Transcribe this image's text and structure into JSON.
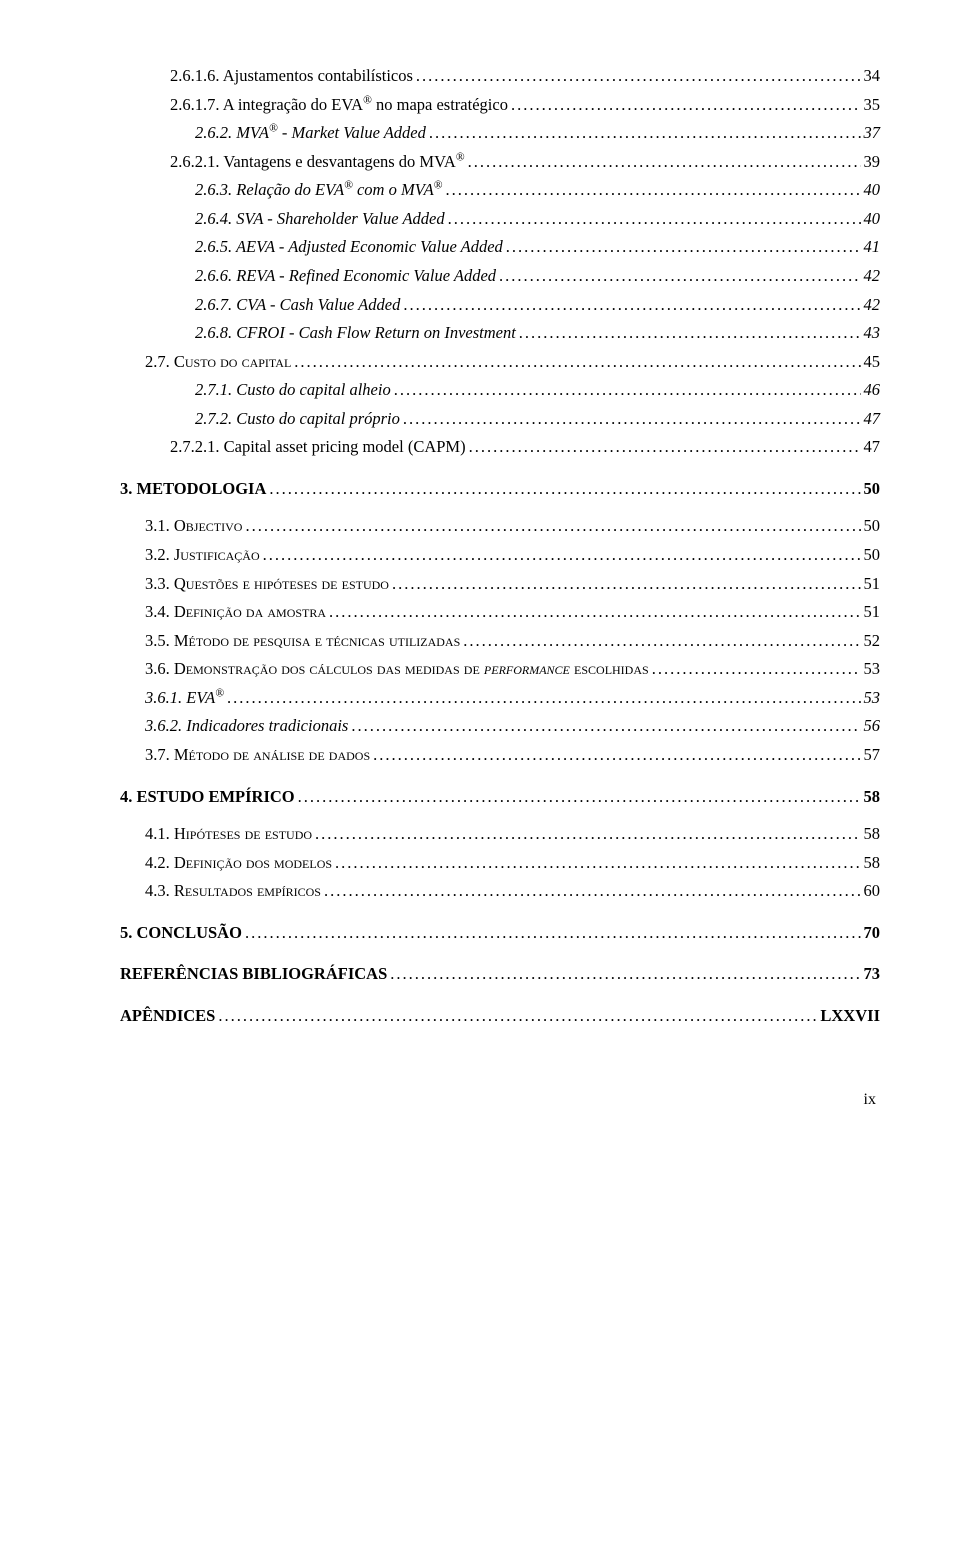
{
  "colors": {
    "text": "#000000",
    "background": "#ffffff"
  },
  "typography": {
    "family": "Times New Roman",
    "base_size_pt": 12
  },
  "page_number": "ix",
  "entries": [
    {
      "level": "A1",
      "label": "2.6.1.6. Ajustamentos contabilísticos",
      "page": "34",
      "italic": false,
      "bold": false,
      "smallcaps": false,
      "sup": ""
    },
    {
      "level": "A1",
      "label": "2.6.1.7. A integração do EVA",
      "sup": "®",
      "label_after": " no mapa estratégico",
      "page": "35",
      "italic": false,
      "bold": false,
      "smallcaps": false
    },
    {
      "level": "A2",
      "label": "2.6.2. MVA",
      "sup": "®",
      "label_after": " - Market Value Added",
      "page": "37",
      "italic": true,
      "bold": false,
      "smallcaps": false
    },
    {
      "level": "A1",
      "label": "2.6.2.1. Vantagens e desvantagens do MVA",
      "sup": "®",
      "label_after": "",
      "page": "39",
      "italic": false,
      "bold": false,
      "smallcaps": false
    },
    {
      "level": "A2",
      "label": "2.6.3. Relação do EVA",
      "sup": "®",
      "label_after": " com o MVA",
      "sup2": "®",
      "page": "40",
      "italic": true,
      "bold": false,
      "smallcaps": false
    },
    {
      "level": "A2",
      "label": "2.6.4. SVA - Shareholder Value Added",
      "page": "40",
      "italic": true,
      "bold": false,
      "smallcaps": false,
      "sup": ""
    },
    {
      "level": "A2",
      "label": "2.6.5. AEVA - Adjusted Economic Value Added",
      "page": "41",
      "italic": true,
      "bold": false,
      "smallcaps": false,
      "sup": ""
    },
    {
      "level": "A2",
      "label": "2.6.6. REVA - Refined Economic Value Added",
      "page": "42",
      "italic": true,
      "bold": false,
      "smallcaps": false,
      "sup": ""
    },
    {
      "level": "A2",
      "label": "2.6.7. CVA - Cash Value Added",
      "page": "42",
      "italic": true,
      "bold": false,
      "smallcaps": false,
      "sup": ""
    },
    {
      "level": "A2",
      "label": "2.6.8. CFROI - Cash Flow Return on Investment",
      "page": "43",
      "italic": true,
      "bold": false,
      "smallcaps": false,
      "sup": ""
    },
    {
      "level": "B1",
      "label": "2.7. Custo do capital",
      "page": "45",
      "italic": false,
      "bold": false,
      "smallcaps": true,
      "sup": ""
    },
    {
      "level": "A2",
      "label": "2.7.1. Custo do capital alheio",
      "page": "46",
      "italic": true,
      "bold": false,
      "smallcaps": false,
      "sup": ""
    },
    {
      "level": "A2",
      "label": "2.7.2. Custo do capital próprio",
      "page": "47",
      "italic": true,
      "bold": false,
      "smallcaps": false,
      "sup": ""
    },
    {
      "level": "A1",
      "label": "2.7.2.1. Capital asset pricing model (CAPM)",
      "page": "47",
      "italic": false,
      "bold": false,
      "smallcaps": false,
      "sup": ""
    },
    {
      "spacer": "md"
    },
    {
      "level": "C",
      "label": "3. METODOLOGIA",
      "page": "50",
      "italic": false,
      "bold": true,
      "smallcaps": false,
      "sup": ""
    },
    {
      "spacer": "sm"
    },
    {
      "level": "B1",
      "label": "3.1. Objectivo",
      "page": "50",
      "italic": false,
      "bold": false,
      "smallcaps": true,
      "sup": ""
    },
    {
      "level": "B1",
      "label": "3.2. Justificação",
      "page": "50",
      "italic": false,
      "bold": false,
      "smallcaps": true,
      "sup": ""
    },
    {
      "level": "B1",
      "label": "3.3. Questões e hipóteses de estudo",
      "page": "51",
      "italic": false,
      "bold": false,
      "smallcaps": true,
      "sup": ""
    },
    {
      "level": "B1",
      "label": "3.4. Definição da amostra",
      "page": "51",
      "italic": false,
      "bold": false,
      "smallcaps": true,
      "sup": ""
    },
    {
      "level": "B1",
      "label": "3.5. Método de pesquisa e técnicas utilizadas",
      "page": "52",
      "italic": false,
      "bold": false,
      "smallcaps": true,
      "sup": ""
    },
    {
      "level": "B1",
      "label_html": "3.6. Demonstração dos cálculos das medidas de <span class=\"italic\">performance</span> escolhidas",
      "page": "53",
      "italic": false,
      "bold": false,
      "smallcaps": true,
      "sup": ""
    },
    {
      "level": "D1",
      "label": "3.6.1. EVA",
      "sup": "®",
      "label_after": "",
      "page": "53",
      "italic": true,
      "bold": false,
      "smallcaps": false
    },
    {
      "level": "D1",
      "label": "3.6.2. Indicadores tradicionais",
      "page": "56",
      "italic": true,
      "bold": false,
      "smallcaps": false,
      "sup": ""
    },
    {
      "level": "B1",
      "label": "3.7. Método de análise de dados",
      "page": "57",
      "italic": false,
      "bold": false,
      "smallcaps": true,
      "sup": ""
    },
    {
      "spacer": "md"
    },
    {
      "level": "C",
      "label": "4. ESTUDO EMPÍRICO",
      "page": "58",
      "italic": false,
      "bold": true,
      "smallcaps": false,
      "sup": ""
    },
    {
      "spacer": "sm"
    },
    {
      "level": "B1",
      "label": "4.1. Hipóteses de estudo",
      "page": "58",
      "italic": false,
      "bold": false,
      "smallcaps": true,
      "sup": ""
    },
    {
      "level": "B1",
      "label": "4.2. Definição dos modelos",
      "page": "58",
      "italic": false,
      "bold": false,
      "smallcaps": true,
      "sup": ""
    },
    {
      "level": "B1",
      "label": "4.3. Resultados empíricos",
      "page": "60",
      "italic": false,
      "bold": false,
      "smallcaps": true,
      "sup": ""
    },
    {
      "spacer": "md"
    },
    {
      "level": "C",
      "label": "5. CONCLUSÃO",
      "page": "70",
      "italic": false,
      "bold": true,
      "smallcaps": false,
      "sup": ""
    },
    {
      "spacer": "md"
    },
    {
      "level": "C",
      "label": "REFERÊNCIAS BIBLIOGRÁFICAS",
      "page": "73",
      "italic": false,
      "bold": true,
      "smallcaps": false,
      "sup": ""
    },
    {
      "spacer": "md"
    },
    {
      "level": "C",
      "label": "APÊNDICES",
      "page": " LXXVII",
      "italic": false,
      "bold": true,
      "smallcaps": false,
      "sup": ""
    }
  ]
}
